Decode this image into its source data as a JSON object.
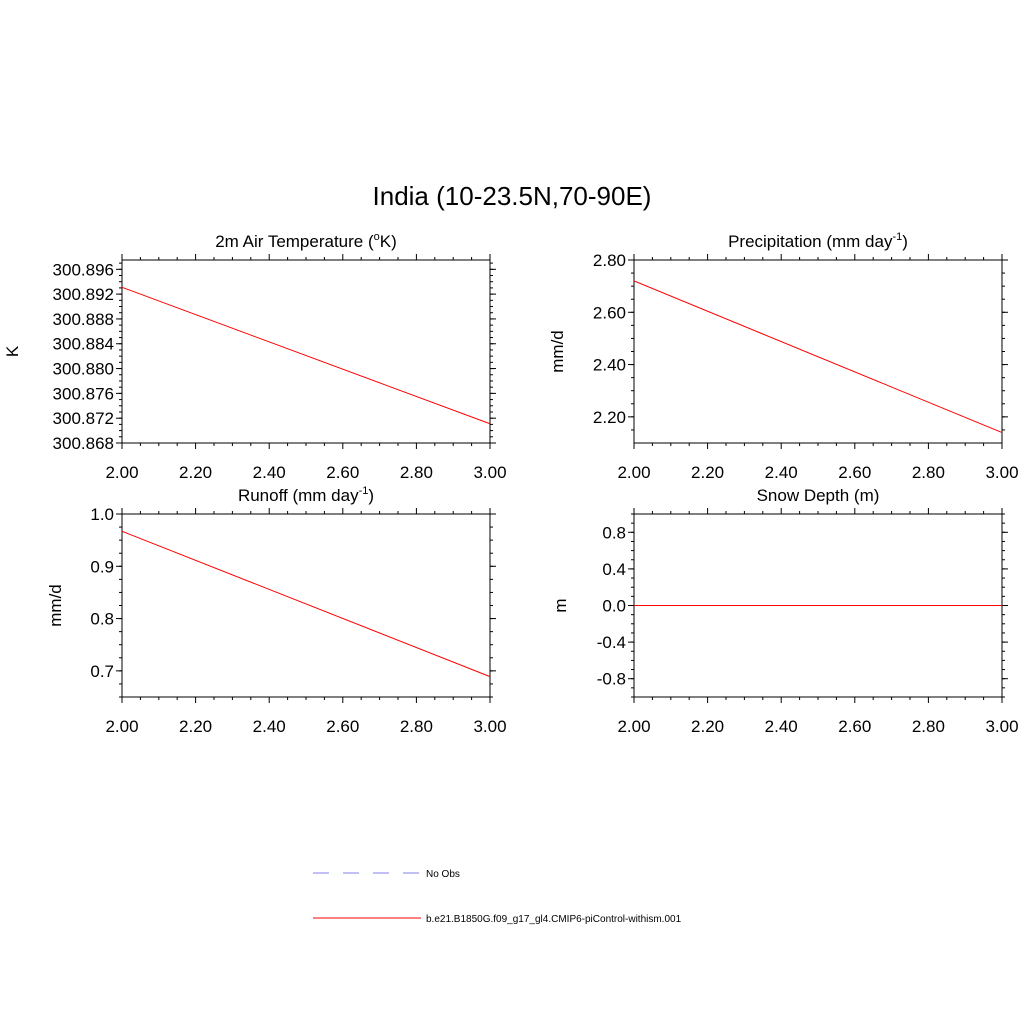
{
  "title": "India (10-23.5N,70-90E)",
  "legend": [
    {
      "label": "No Obs",
      "color": "#9a9af0",
      "style": "dashed"
    },
    {
      "label": "b.e21.B1850G.f09_g17_gl4.CMIP6-piControl-withism.001",
      "color": "#ff0000",
      "style": "solid"
    }
  ],
  "colors": {
    "line": "#ff0000",
    "axis": "#000000"
  },
  "chart_data": [
    {
      "type": "line",
      "title": "2m Air Temperature (",
      "title_sup_pre": "o",
      "title_post": "K)",
      "ylabel": "K",
      "xlabel": "",
      "xlim": [
        2.0,
        3.0
      ],
      "ylim": [
        300.868,
        300.8975
      ],
      "x_ticks": [
        "2.00",
        "2.20",
        "2.40",
        "2.60",
        "2.80",
        "3.00"
      ],
      "y_ticks": [
        {
          "value": 300.868,
          "label": "300.868"
        },
        {
          "value": 300.872,
          "label": "300.872"
        },
        {
          "value": 300.876,
          "label": "300.876"
        },
        {
          "value": 300.88,
          "label": "300.880"
        },
        {
          "value": 300.884,
          "label": "300.884"
        },
        {
          "value": 300.888,
          "label": "300.888"
        },
        {
          "value": 300.892,
          "label": "300.892"
        },
        {
          "value": 300.896,
          "label": "300.896"
        }
      ],
      "series": [
        {
          "x": [
            2.0,
            3.0
          ],
          "y": [
            300.8931,
            300.8711
          ]
        }
      ]
    },
    {
      "type": "line",
      "title": "Precipitation (mm day",
      "title_sup": "-1",
      "title_post": ")",
      "ylabel": "mm/d",
      "xlabel": "",
      "xlim": [
        2.0,
        3.0
      ],
      "ylim": [
        2.1,
        2.8
      ],
      "x_ticks": [
        "2.00",
        "2.20",
        "2.40",
        "2.60",
        "2.80",
        "3.00"
      ],
      "y_ticks": [
        {
          "value": 2.2,
          "label": "2.20"
        },
        {
          "value": 2.4,
          "label": "2.40"
        },
        {
          "value": 2.6,
          "label": "2.60"
        },
        {
          "value": 2.8,
          "label": "2.80"
        }
      ],
      "series": [
        {
          "x": [
            2.0,
            3.0
          ],
          "y": [
            2.72,
            2.14
          ]
        }
      ]
    },
    {
      "type": "line",
      "title": "Runoff (mm day",
      "title_sup": "-1",
      "title_post": ")",
      "ylabel": "mm/d",
      "xlabel": "",
      "xlim": [
        2.0,
        3.0
      ],
      "ylim": [
        0.65,
        1.0
      ],
      "x_ticks": [
        "2.00",
        "2.20",
        "2.40",
        "2.60",
        "2.80",
        "3.00"
      ],
      "y_ticks": [
        {
          "value": 0.7,
          "label": "0.7"
        },
        {
          "value": 0.8,
          "label": "0.8"
        },
        {
          "value": 0.9,
          "label": "0.9"
        },
        {
          "value": 1.0,
          "label": "1.0"
        }
      ],
      "series": [
        {
          "x": [
            2.0,
            3.0
          ],
          "y": [
            0.967,
            0.689
          ]
        }
      ]
    },
    {
      "type": "line",
      "title": "Snow Depth (m)",
      "ylabel": "m",
      "xlabel": "",
      "xlim": [
        2.0,
        3.0
      ],
      "ylim": [
        -1.0,
        1.0
      ],
      "x_ticks": [
        "2.00",
        "2.20",
        "2.40",
        "2.60",
        "2.80",
        "3.00"
      ],
      "y_ticks": [
        {
          "value": -0.8,
          "label": "-0.8"
        },
        {
          "value": -0.4,
          "label": "-0.4"
        },
        {
          "value": 0.0,
          "label": "0.0"
        },
        {
          "value": 0.4,
          "label": "0.4"
        },
        {
          "value": 0.8,
          "label": "0.8"
        }
      ],
      "series": [
        {
          "x": [
            2.0,
            3.0
          ],
          "y": [
            0.0,
            0.0
          ]
        }
      ]
    }
  ]
}
